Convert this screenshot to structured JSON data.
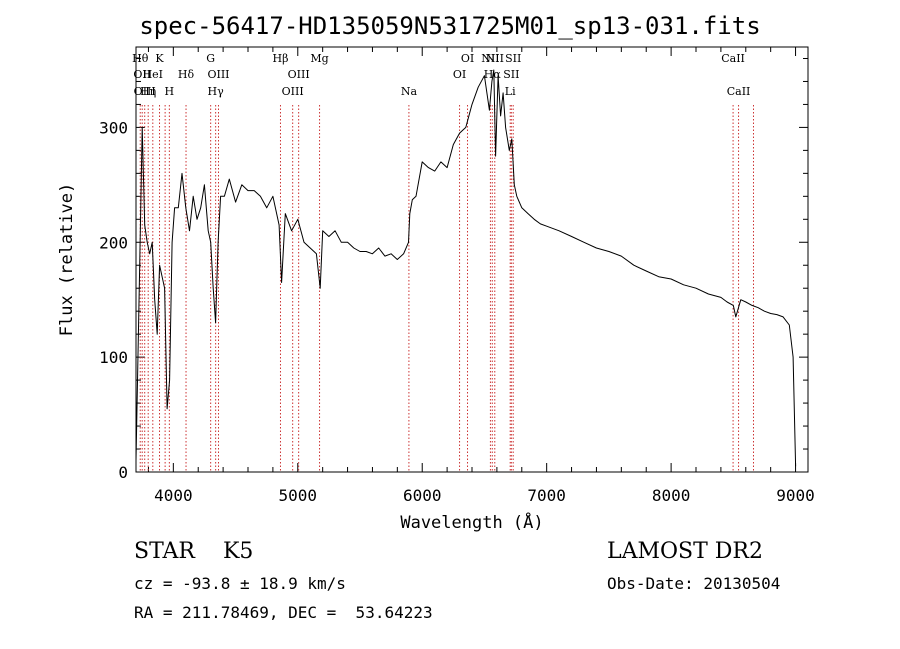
{
  "chart_data": {
    "type": "line",
    "title": "spec-56417-HD135059N531725M01_sp13-031.fits",
    "xlabel": "Wavelength (Å)",
    "ylabel": "Flux (relative)",
    "xlim": [
      3700,
      9100
    ],
    "ylim": [
      0,
      370
    ],
    "xticks": [
      4000,
      5000,
      6000,
      7000,
      8000,
      9000
    ],
    "yticks": [
      0,
      100,
      200,
      300
    ],
    "grid": false,
    "line_color": "#000000",
    "marker_color": "#cc3333",
    "series": [
      {
        "x": [
          3700,
          3730,
          3750,
          3770,
          3790,
          3810,
          3830,
          3850,
          3870,
          3890,
          3910,
          3930,
          3950,
          3970,
          3990,
          4010,
          4040,
          4070,
          4100,
          4130,
          4160,
          4190,
          4220,
          4250,
          4280,
          4300,
          4320,
          4340,
          4360,
          4380,
          4410,
          4450,
          4500,
          4550,
          4600,
          4650,
          4700,
          4750,
          4800,
          4850,
          4870,
          4900,
          4950,
          5000,
          5050,
          5100,
          5150,
          5180,
          5200,
          5250,
          5300,
          5350,
          5400,
          5450,
          5500,
          5550,
          5600,
          5650,
          5700,
          5750,
          5800,
          5850,
          5890,
          5900,
          5920,
          5950,
          6000,
          6050,
          6100,
          6150,
          6200,
          6250,
          6300,
          6350,
          6400,
          6450,
          6500,
          6520,
          6540,
          6560,
          6575,
          6590,
          6610,
          6630,
          6650,
          6670,
          6700,
          6720,
          6740,
          6760,
          6800,
          6850,
          6900,
          6950,
          7000,
          7100,
          7200,
          7300,
          7400,
          7500,
          7600,
          7700,
          7800,
          7900,
          8000,
          8100,
          8200,
          8300,
          8400,
          8450,
          8500,
          8520,
          8560,
          8600,
          8650,
          8700,
          8750,
          8800,
          8850,
          8900,
          8950,
          8980,
          9000
        ],
        "y": [
          10,
          180,
          300,
          215,
          200,
          190,
          200,
          150,
          120,
          180,
          170,
          160,
          55,
          80,
          200,
          230,
          230,
          260,
          230,
          210,
          240,
          220,
          230,
          250,
          210,
          200,
          160,
          130,
          200,
          240,
          240,
          255,
          235,
          250,
          245,
          245,
          240,
          230,
          240,
          215,
          165,
          225,
          210,
          220,
          200,
          195,
          190,
          160,
          210,
          205,
          210,
          200,
          200,
          195,
          192,
          192,
          190,
          195,
          188,
          190,
          185,
          190,
          200,
          225,
          237,
          240,
          270,
          265,
          262,
          270,
          265,
          285,
          295,
          300,
          320,
          335,
          345,
          330,
          315,
          340,
          350,
          275,
          345,
          310,
          330,
          300,
          280,
          290,
          250,
          240,
          230,
          225,
          220,
          216,
          214,
          210,
          205,
          200,
          195,
          192,
          188,
          180,
          175,
          170,
          168,
          163,
          160,
          155,
          152,
          148,
          145,
          135,
          150,
          148,
          145,
          143,
          140,
          138,
          137,
          135,
          128,
          100,
          5
        ]
      }
    ],
    "line_markers": [
      {
        "x": 3734,
        "row": 1,
        "label": "Hθ"
      },
      {
        "x": 3750,
        "row": 2,
        "label": "OII"
      },
      {
        "x": 3770,
        "row": 3,
        "label": "OIII"
      },
      {
        "x": 3798,
        "row": 3,
        "label": "Hη"
      },
      {
        "x": 3835,
        "row": 2,
        "label": "HeI"
      },
      {
        "x": 3889,
        "row": 1,
        "label": "K"
      },
      {
        "x": 3934,
        "row": 1,
        "label": ""
      },
      {
        "x": 3968,
        "row": 3,
        "label": "H"
      },
      {
        "x": 4102,
        "row": 2,
        "label": "Hδ"
      },
      {
        "x": 4300,
        "row": 1,
        "label": "G"
      },
      {
        "x": 4340,
        "row": 3,
        "label": "Hγ"
      },
      {
        "x": 4363,
        "row": 2,
        "label": "OIII"
      },
      {
        "x": 4861,
        "row": 1,
        "label": "Hβ"
      },
      {
        "x": 4959,
        "row": 3,
        "label": "OIII"
      },
      {
        "x": 5007,
        "row": 2,
        "label": "OIII"
      },
      {
        "x": 5175,
        "row": 1,
        "label": "Mg"
      },
      {
        "x": 5893,
        "row": 3,
        "label": "Na"
      },
      {
        "x": 6300,
        "row": 2,
        "label": "OI"
      },
      {
        "x": 6364,
        "row": 1,
        "label": "OI"
      },
      {
        "x": 6548,
        "row": 1,
        "label": "NII"
      },
      {
        "x": 6563,
        "row": 2,
        "label": "Hα"
      },
      {
        "x": 6583,
        "row": 1,
        "label": "NII"
      },
      {
        "x": 6707,
        "row": 3,
        "label": "Li"
      },
      {
        "x": 6716,
        "row": 2,
        "label": "SII"
      },
      {
        "x": 6731,
        "row": 1,
        "label": "SII"
      },
      {
        "x": 8498,
        "row": 1,
        "label": "CaII"
      },
      {
        "x": 8542,
        "row": 3,
        "label": "CaII"
      },
      {
        "x": 8662,
        "row": 2,
        "label": ""
      }
    ]
  },
  "info": {
    "class_label": "STAR    K5",
    "cz": "cz = -93.8 ± 18.9 km/s",
    "coords": "RA = 211.78469, DEC =  53.64223",
    "survey": "LAMOST DR2",
    "obs_date": "Obs-Date: 20130504"
  }
}
